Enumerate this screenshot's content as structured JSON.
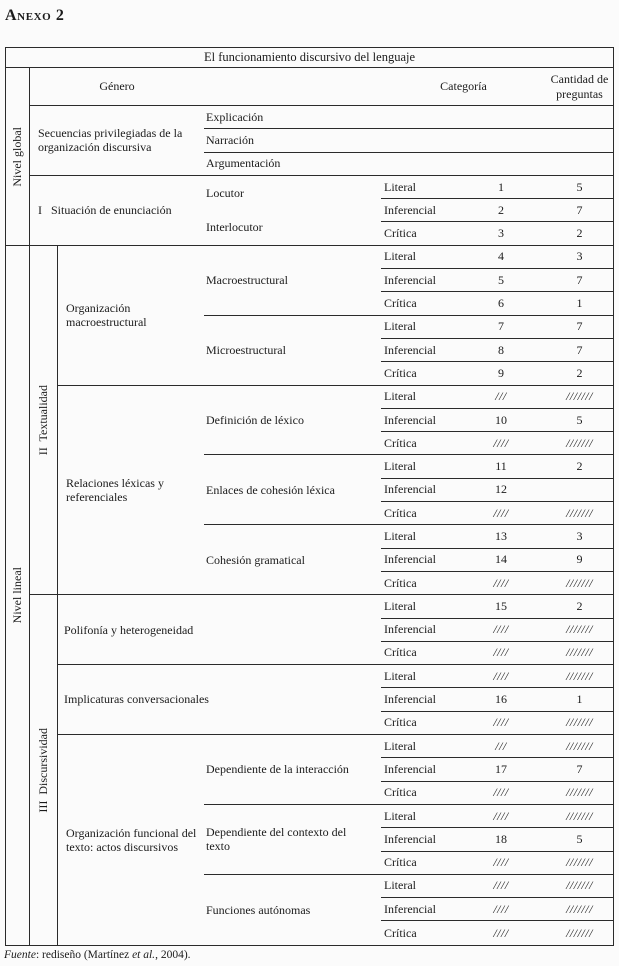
{
  "page": {
    "heading": "Anexo 2"
  },
  "footer": {
    "label": "Fuente",
    "sep": ": rediseño (Martínez ",
    "etal": "et al.",
    "tail": ", 2004)."
  },
  "table": {
    "title": "El funcionamiento discursivo del lenguaje",
    "col_genero": "Género",
    "col_categoria": "Categoría",
    "col_cantidad": "Cantidad de preguntas",
    "level_global": "Nivel global",
    "level_lineal": "Nivel lineal",
    "sublevel_2": "II  Textualidad",
    "sublevel_3": "III  Discursividad",
    "global": {
      "secuencias": {
        "genre": "Secuencias privilegiadas de la organización discursiva",
        "rows": [
          "Explicación",
          "Narración",
          "Argumentación"
        ]
      },
      "situacion": {
        "genre": "I   Situación de enunciación",
        "sublabels": [
          "Locutor",
          "Interlocutor"
        ],
        "rows": [
          [
            "Literal",
            "1",
            "5"
          ],
          [
            "Inferencial",
            "2",
            "7"
          ],
          [
            "Crítica",
            "3",
            "2"
          ]
        ]
      }
    },
    "lineal": {
      "org_macro": {
        "genre": "Organización macroestructural",
        "subgroups": [
          {
            "name": "Macroestructural",
            "rows": [
              [
                "Literal",
                "4",
                "3"
              ],
              [
                "Inferencial",
                "5",
                "7"
              ],
              [
                "Crítica",
                "6",
                "1"
              ]
            ]
          },
          {
            "name": "Microestructural",
            "rows": [
              [
                "Literal",
                "7",
                "7"
              ],
              [
                "Inferencial",
                "8",
                "7"
              ],
              [
                "Crítica",
                "9",
                "2"
              ]
            ]
          }
        ]
      },
      "relaciones": {
        "genre": "Relaciones léxicas y referenciales",
        "subgroups": [
          {
            "name": "Definición de léxico",
            "rows": [
              [
                "Literal",
                "///",
                "///////"
              ],
              [
                "Inferencial",
                "10",
                "5"
              ],
              [
                "Crítica",
                "////",
                "///////"
              ]
            ]
          },
          {
            "name": "Enlaces de cohesión léxica",
            "rows": [
              [
                "Literal",
                "11",
                "2"
              ],
              [
                "Inferencial",
                "12",
                ""
              ],
              [
                "Crítica",
                "////",
                "///////"
              ]
            ]
          },
          {
            "name": "Cohesión gramatical",
            "rows": [
              [
                "Literal",
                "13",
                "3"
              ],
              [
                "Inferencial",
                "14",
                "9"
              ],
              [
                "Crítica",
                "////",
                "///////"
              ]
            ]
          }
        ]
      },
      "polifonia": {
        "genre": "Polifonía y heterogeneidad",
        "rows": [
          [
            "Literal",
            "15",
            "2"
          ],
          [
            "Inferencial",
            "////",
            "///////"
          ],
          [
            "Crítica",
            "////",
            "///////"
          ]
        ]
      },
      "implicaturas": {
        "genre": "Implicaturas conversacionales",
        "rows": [
          [
            "Literal",
            "////",
            "///////"
          ],
          [
            "Inferencial",
            "16",
            "1"
          ],
          [
            "Crítica",
            "////",
            "///////"
          ]
        ]
      },
      "org_funcional": {
        "genre": "Organización funcional del texto: actos discursivos",
        "subgroups": [
          {
            "name": "Dependiente de la interacción",
            "rows": [
              [
                "Literal",
                "///",
                "///////"
              ],
              [
                "Inferencial",
                "17",
                "7"
              ],
              [
                "Crítica",
                "////",
                "///////"
              ]
            ]
          },
          {
            "name": "Dependiente del contexto del texto",
            "rows": [
              [
                "Literal",
                "////",
                "///////"
              ],
              [
                "Inferencial",
                "18",
                "5"
              ],
              [
                "Crítica",
                "////",
                "///////"
              ]
            ]
          },
          {
            "name": "Funciones autónomas",
            "rows": [
              [
                "Literal",
                "////",
                "///////"
              ],
              [
                "Inferencial",
                "////",
                "///////"
              ],
              [
                "Crítica",
                "////",
                "///////"
              ]
            ]
          }
        ]
      }
    }
  }
}
